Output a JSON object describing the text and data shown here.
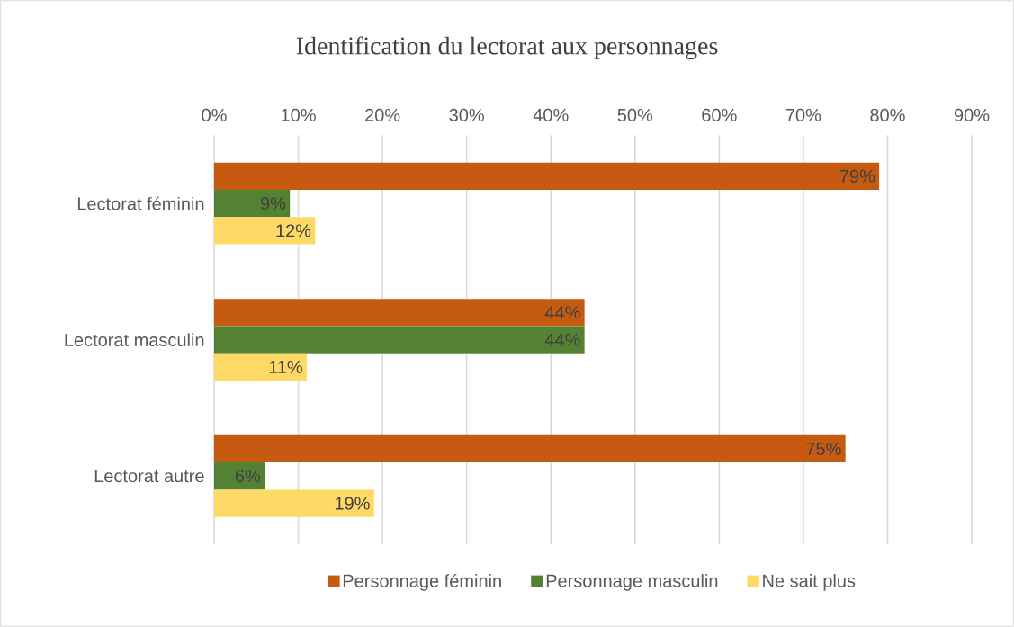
{
  "chart_data": {
    "type": "bar",
    "orientation": "horizontal",
    "title": "Identification du lectorat aux personnages",
    "categories": [
      "Lectorat féminin",
      "Lectorat masculin",
      "Lectorat autre"
    ],
    "series": [
      {
        "name": "Personnage féminin",
        "color": "#c55a11",
        "values": [
          79,
          44,
          75
        ],
        "value_labels": [
          "79%",
          "44%",
          "75%"
        ]
      },
      {
        "name": "Personnage masculin",
        "color": "#548235",
        "values": [
          9,
          44,
          6
        ],
        "value_labels": [
          "9%",
          "44%",
          "6%"
        ]
      },
      {
        "name": "Ne sait plus",
        "color": "#ffd966",
        "values": [
          12,
          11,
          19
        ],
        "value_labels": [
          "12%",
          "11%",
          "19%"
        ]
      }
    ],
    "xlim": [
      0,
      90
    ],
    "xticks": [
      {
        "value": 0,
        "label": "0%"
      },
      {
        "value": 10,
        "label": "10%"
      },
      {
        "value": 20,
        "label": "20%"
      },
      {
        "value": 30,
        "label": "30%"
      },
      {
        "value": 40,
        "label": "40%"
      },
      {
        "value": 50,
        "label": "50%"
      },
      {
        "value": 60,
        "label": "60%"
      },
      {
        "value": 70,
        "label": "70%"
      },
      {
        "value": 80,
        "label": "80%"
      },
      {
        "value": 90,
        "label": "90%"
      }
    ],
    "grid": "x",
    "legend": "bottom"
  }
}
